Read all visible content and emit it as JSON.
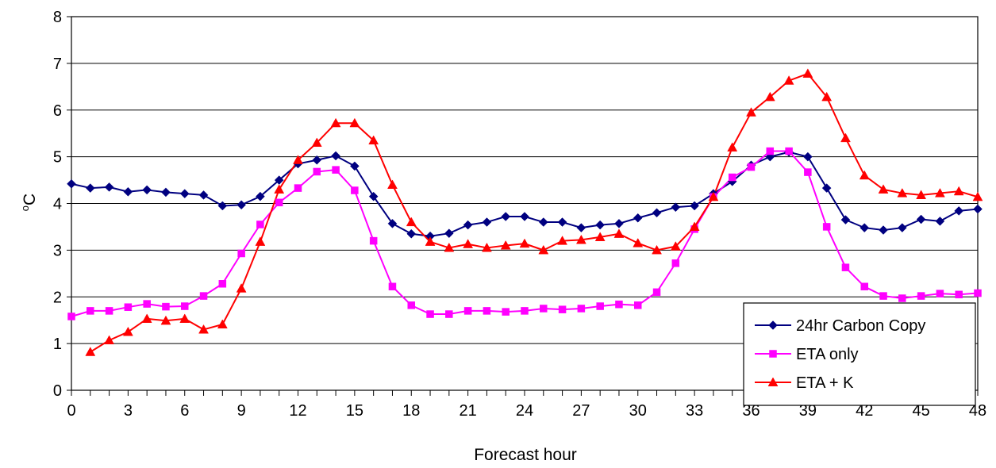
{
  "chart_data": {
    "type": "line",
    "title": "",
    "xlabel": "Forecast hour",
    "ylabel_main": "C",
    "ylabel_superscript": "o",
    "xlim": [
      0,
      48
    ],
    "ylim": [
      0,
      8
    ],
    "x_ticks": [
      "0",
      "3",
      "6",
      "9",
      "12",
      "15",
      "18",
      "21",
      "24",
      "27",
      "30",
      "33",
      "36",
      "39",
      "42",
      "45",
      "48"
    ],
    "y_ticks": [
      "0",
      "1",
      "2",
      "3",
      "4",
      "5",
      "6",
      "7",
      "8"
    ],
    "grid": "horizontal",
    "legend_position": "bottom-right",
    "x": [
      0,
      1,
      2,
      3,
      4,
      5,
      6,
      7,
      8,
      9,
      10,
      11,
      12,
      13,
      14,
      15,
      16,
      17,
      18,
      19,
      20,
      21,
      22,
      23,
      24,
      25,
      26,
      27,
      28,
      29,
      30,
      31,
      32,
      33,
      34,
      35,
      36,
      37,
      38,
      39,
      40,
      41,
      42,
      43,
      44,
      45,
      46,
      47,
      48
    ],
    "series": [
      {
        "name": "24hr Carbon Copy",
        "color": "#000080",
        "marker": "diamond",
        "values": [
          4.42,
          4.33,
          4.35,
          4.25,
          4.29,
          4.24,
          4.21,
          4.18,
          3.95,
          3.97,
          4.15,
          4.5,
          4.85,
          4.93,
          5.02,
          4.8,
          4.15,
          3.57,
          3.35,
          3.3,
          3.36,
          3.54,
          3.6,
          3.72,
          3.72,
          3.6,
          3.6,
          3.48,
          3.54,
          3.57,
          3.69,
          3.8,
          3.92,
          3.95,
          4.21,
          4.47,
          4.82,
          5.0,
          5.1,
          5.0,
          4.33,
          3.65,
          3.48,
          3.43,
          3.48,
          3.66,
          3.62,
          3.84,
          3.88
        ]
      },
      {
        "name": "ETA only",
        "color": "#FF00FF",
        "marker": "square",
        "values": [
          1.58,
          1.7,
          1.7,
          1.78,
          1.85,
          1.79,
          1.8,
          2.02,
          2.28,
          2.93,
          3.55,
          4.02,
          4.33,
          4.68,
          4.72,
          4.28,
          3.2,
          2.22,
          1.82,
          1.63,
          1.63,
          1.7,
          1.7,
          1.68,
          1.7,
          1.75,
          1.73,
          1.75,
          1.8,
          1.84,
          1.82,
          2.1,
          2.72,
          3.45,
          4.14,
          4.56,
          4.78,
          5.12,
          5.12,
          4.67,
          3.5,
          2.63,
          2.22,
          2.02,
          1.97,
          2.02,
          2.07,
          2.05,
          2.08
        ]
      },
      {
        "name": "ETA + K",
        "color": "#FF0000",
        "marker": "triangle",
        "values": [
          null,
          0.82,
          1.07,
          1.25,
          1.53,
          1.49,
          1.53,
          1.3,
          1.41,
          2.18,
          3.18,
          4.3,
          4.93,
          5.3,
          5.72,
          5.72,
          5.35,
          4.4,
          3.6,
          3.18,
          3.05,
          3.13,
          3.05,
          3.1,
          3.14,
          3.0,
          3.2,
          3.22,
          3.28,
          3.35,
          3.15,
          3.0,
          3.08,
          3.5,
          4.14,
          5.2,
          5.95,
          6.28,
          6.63,
          6.78,
          6.28,
          5.4,
          4.6,
          4.3,
          4.22,
          4.18,
          4.22,
          4.26,
          4.14
        ]
      }
    ]
  }
}
